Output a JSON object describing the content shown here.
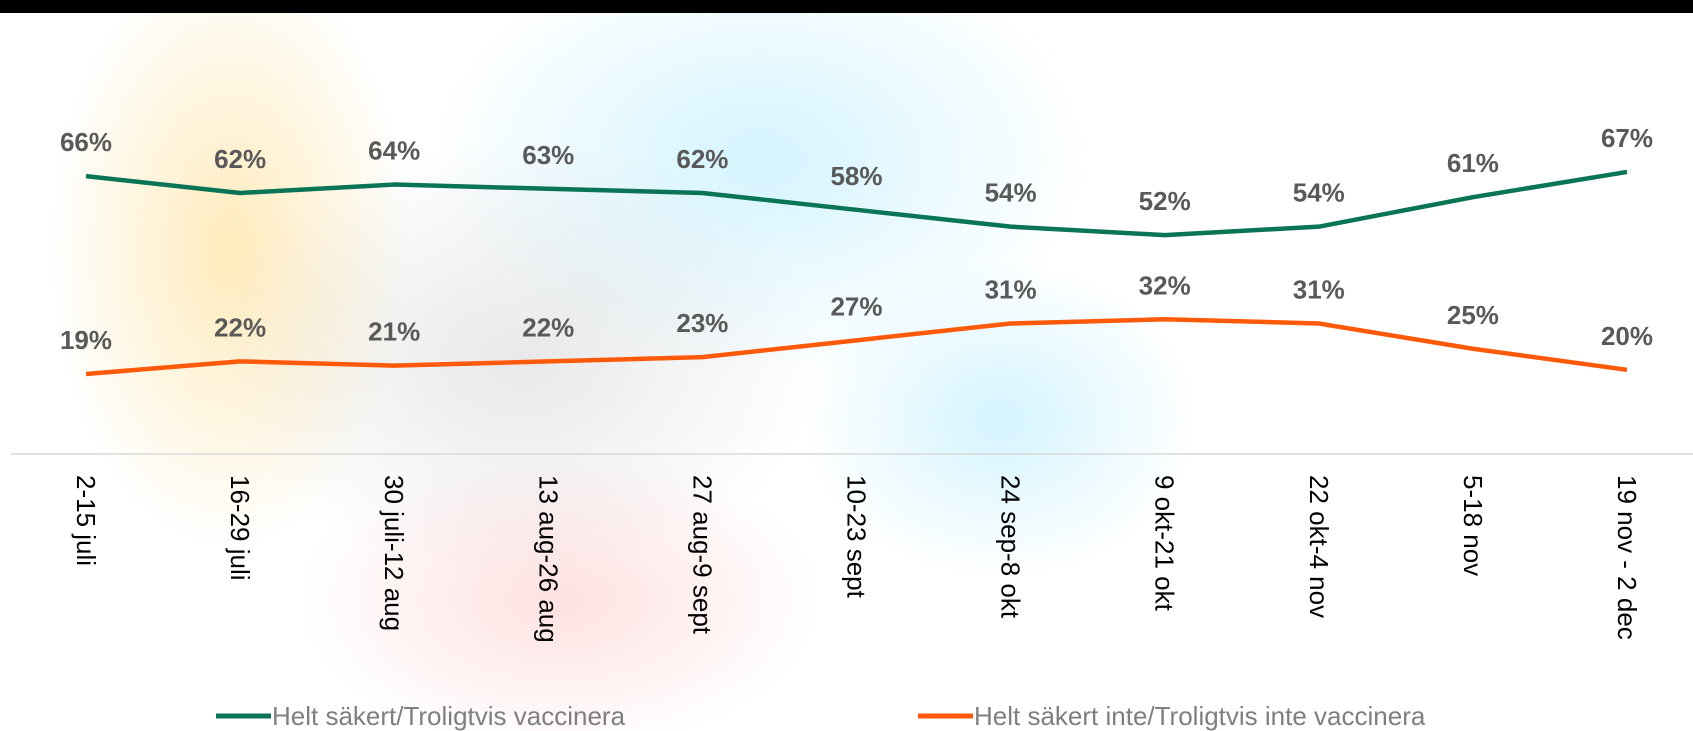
{
  "chart_data": {
    "type": "line",
    "categories": [
      "2-15 juli",
      "16-29 juli",
      "30 juli-12 aug",
      "13 aug-26 aug",
      "27 aug-9 sept",
      "10-23 sept",
      "24 sep-8 okt",
      "9 okt-21 okt",
      "22 okt-4 nov",
      "5-18 nov",
      "19 nov - 2 dec"
    ],
    "series": [
      {
        "name": "Helt säkert/Troligtvis vaccinera",
        "color": "#0a7457",
        "values": [
          66,
          62,
          64,
          63,
          62,
          58,
          54,
          52,
          54,
          61,
          67
        ],
        "value_labels": [
          "66%",
          "62%",
          "64%",
          "63%",
          "62%",
          "58%",
          "54%",
          "52%",
          "54%",
          "61%",
          "67%"
        ]
      },
      {
        "name": "Helt säkert inte/Troligtvis inte vaccinera",
        "color": "#ff5a0a",
        "values": [
          19,
          22,
          21,
          22,
          23,
          27,
          31,
          32,
          31,
          25,
          20
        ],
        "value_labels": [
          "19%",
          "22%",
          "21%",
          "22%",
          "23%",
          "27%",
          "31%",
          "32%",
          "31%",
          "25%",
          "20%"
        ]
      }
    ],
    "ylim": [
      0,
      80
    ],
    "legend": "bottom"
  }
}
